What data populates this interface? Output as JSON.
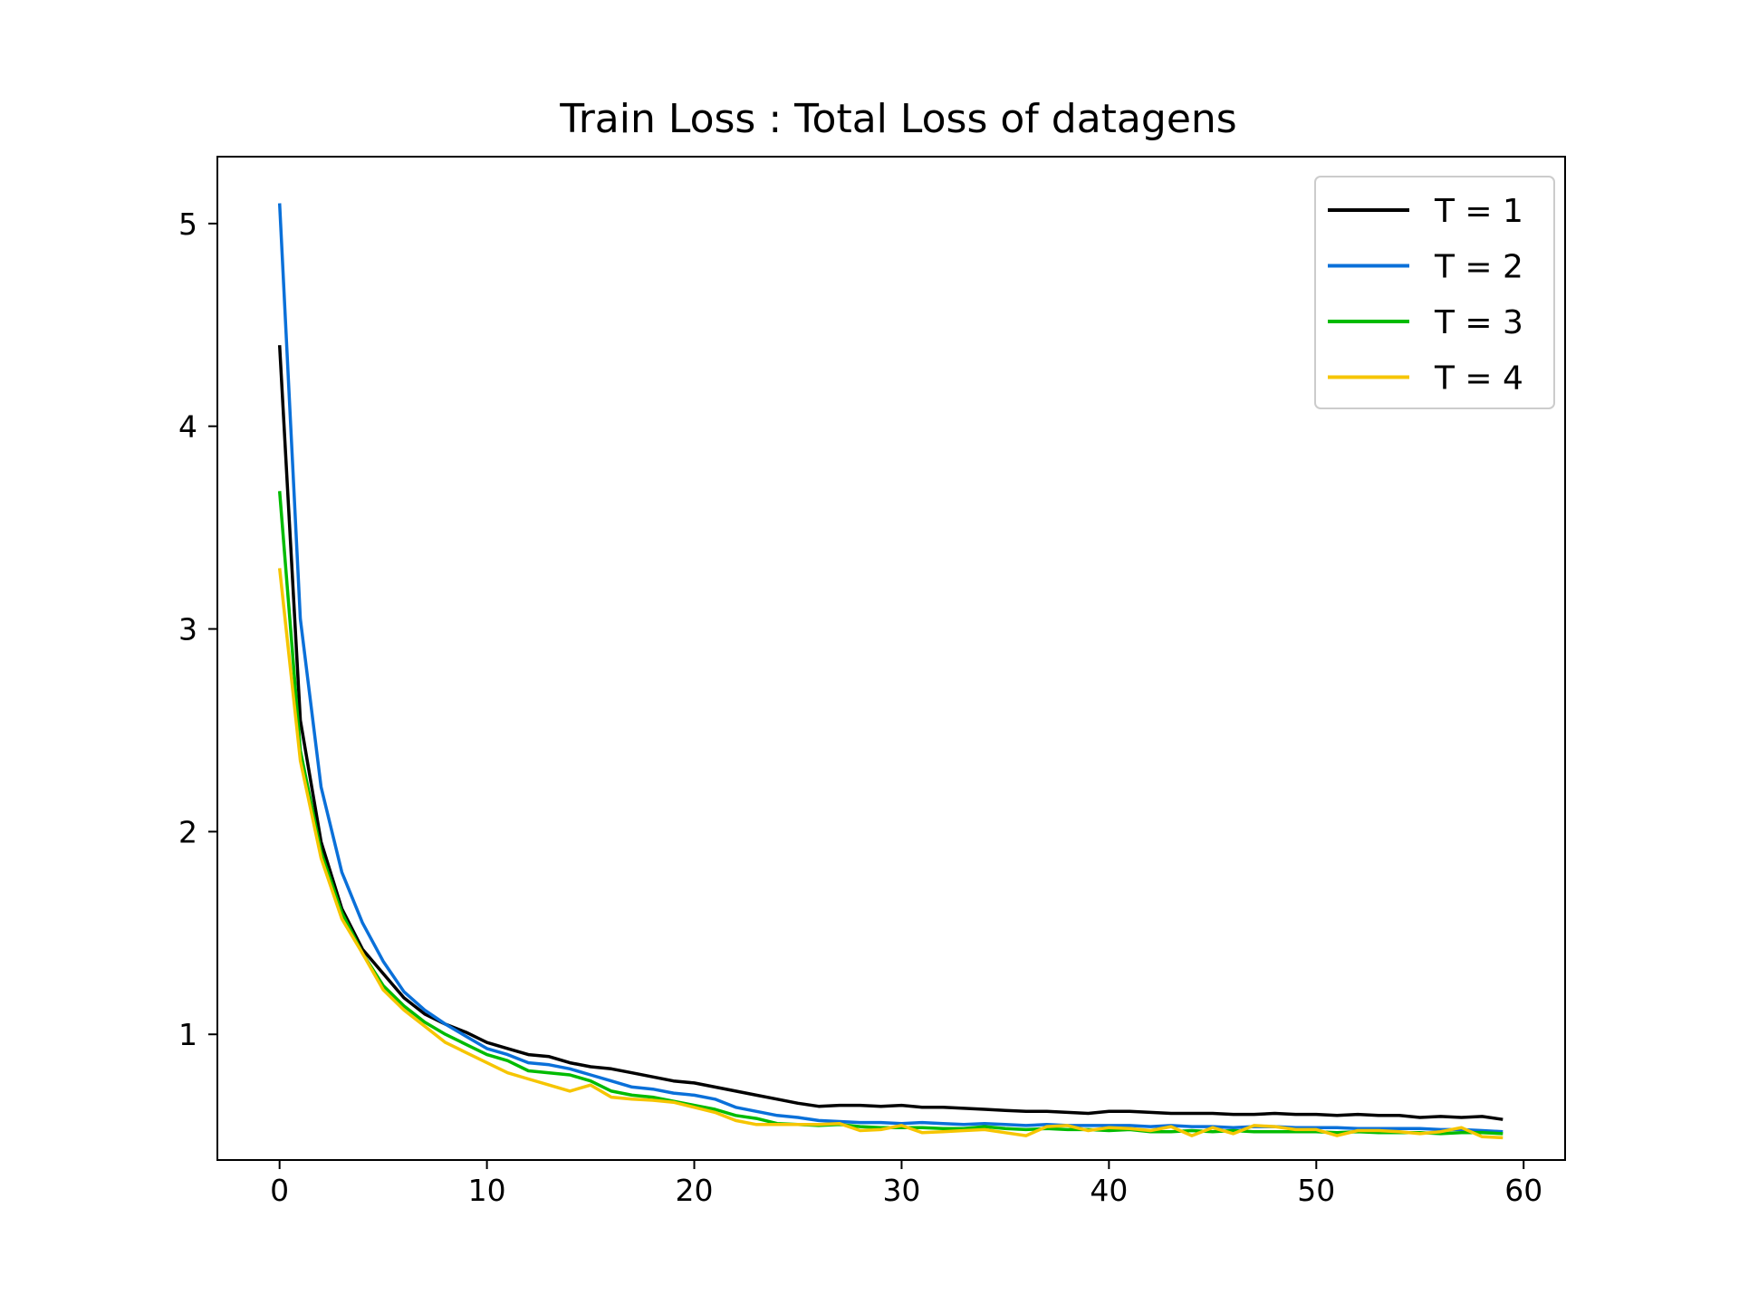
{
  "chart_data": {
    "type": "line",
    "title": "Train Loss : Total Loss of datagens",
    "xlabel": "",
    "ylabel": "",
    "xlim": [
      -3,
      62
    ],
    "ylim": [
      0.38,
      5.33
    ],
    "xticks": [
      0,
      10,
      20,
      30,
      40,
      50,
      60
    ],
    "yticks": [
      1,
      2,
      3,
      4,
      5
    ],
    "grid": false,
    "legend": "top-right",
    "x": [
      0,
      1,
      2,
      3,
      4,
      5,
      6,
      7,
      8,
      9,
      10,
      11,
      12,
      13,
      14,
      15,
      16,
      17,
      18,
      19,
      20,
      21,
      22,
      23,
      24,
      25,
      26,
      27,
      28,
      29,
      30,
      31,
      32,
      33,
      34,
      35,
      36,
      37,
      38,
      39,
      40,
      41,
      42,
      43,
      44,
      45,
      46,
      47,
      48,
      49,
      50,
      51,
      52,
      53,
      54,
      55,
      56,
      57,
      58,
      59
    ],
    "series": [
      {
        "name": "T = 1",
        "color": "#000000",
        "values": [
          4.4,
          2.55,
          1.95,
          1.62,
          1.42,
          1.3,
          1.18,
          1.1,
          1.05,
          1.01,
          0.96,
          0.93,
          0.9,
          0.89,
          0.86,
          0.84,
          0.83,
          0.81,
          0.79,
          0.77,
          0.76,
          0.74,
          0.72,
          0.7,
          0.68,
          0.66,
          0.645,
          0.65,
          0.65,
          0.645,
          0.65,
          0.64,
          0.64,
          0.635,
          0.63,
          0.625,
          0.62,
          0.62,
          0.615,
          0.61,
          0.62,
          0.62,
          0.615,
          0.61,
          0.61,
          0.61,
          0.605,
          0.605,
          0.61,
          0.605,
          0.605,
          0.6,
          0.605,
          0.6,
          0.6,
          0.59,
          0.595,
          0.59,
          0.595,
          0.58
        ]
      },
      {
        "name": "T = 2",
        "color": "#0a70d9",
        "values": [
          5.1,
          3.05,
          2.22,
          1.8,
          1.55,
          1.36,
          1.21,
          1.12,
          1.05,
          0.99,
          0.93,
          0.9,
          0.86,
          0.85,
          0.83,
          0.8,
          0.77,
          0.74,
          0.73,
          0.71,
          0.7,
          0.68,
          0.64,
          0.62,
          0.6,
          0.59,
          0.575,
          0.57,
          0.565,
          0.565,
          0.56,
          0.565,
          0.56,
          0.555,
          0.56,
          0.555,
          0.55,
          0.555,
          0.55,
          0.55,
          0.55,
          0.55,
          0.545,
          0.55,
          0.545,
          0.545,
          0.54,
          0.545,
          0.545,
          0.54,
          0.54,
          0.54,
          0.535,
          0.535,
          0.535,
          0.535,
          0.53,
          0.53,
          0.525,
          0.52
        ]
      },
      {
        "name": "T = 3",
        "color": "#00bb00",
        "values": [
          3.68,
          2.4,
          1.9,
          1.6,
          1.4,
          1.24,
          1.14,
          1.06,
          1.0,
          0.95,
          0.9,
          0.87,
          0.82,
          0.81,
          0.8,
          0.77,
          0.72,
          0.7,
          0.69,
          0.67,
          0.65,
          0.63,
          0.6,
          0.585,
          0.56,
          0.555,
          0.55,
          0.555,
          0.545,
          0.54,
          0.54,
          0.54,
          0.535,
          0.535,
          0.545,
          0.535,
          0.53,
          0.535,
          0.53,
          0.53,
          0.525,
          0.53,
          0.52,
          0.52,
          0.525,
          0.52,
          0.525,
          0.52,
          0.52,
          0.52,
          0.52,
          0.515,
          0.52,
          0.515,
          0.515,
          0.515,
          0.51,
          0.515,
          0.515,
          0.51
        ]
      },
      {
        "name": "T = 4",
        "color": "#f6c500",
        "values": [
          3.3,
          2.35,
          1.87,
          1.57,
          1.4,
          1.22,
          1.12,
          1.04,
          0.96,
          0.91,
          0.86,
          0.81,
          0.78,
          0.75,
          0.72,
          0.75,
          0.69,
          0.68,
          0.675,
          0.665,
          0.64,
          0.615,
          0.575,
          0.555,
          0.555,
          0.555,
          0.555,
          0.56,
          0.525,
          0.53,
          0.55,
          0.515,
          0.52,
          0.525,
          0.53,
          0.515,
          0.5,
          0.545,
          0.55,
          0.525,
          0.54,
          0.535,
          0.525,
          0.545,
          0.5,
          0.54,
          0.51,
          0.55,
          0.545,
          0.53,
          0.53,
          0.5,
          0.525,
          0.525,
          0.52,
          0.51,
          0.52,
          0.54,
          0.495,
          0.49
        ]
      }
    ]
  }
}
